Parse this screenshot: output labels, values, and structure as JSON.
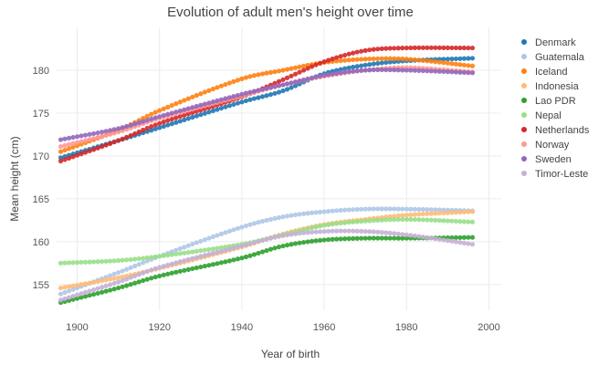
{
  "chart_data": {
    "type": "scatter",
    "title": "Evolution of adult men's height over time",
    "xlabel": "Year of birth",
    "ylabel": "Mean height (cm)",
    "xlim": [
      1895,
      2003
    ],
    "ylim": [
      152,
      185
    ],
    "x_ticks": [
      1900,
      1920,
      1940,
      1960,
      1980,
      2000
    ],
    "y_ticks": [
      155,
      160,
      165,
      170,
      175,
      180
    ],
    "grid": true,
    "legend_position": "right",
    "series": [
      {
        "name": "Denmark",
        "color": "#1f77b4",
        "points": [
          [
            1896,
            169.8
          ],
          [
            1910,
            171.8
          ],
          [
            1920,
            173.3
          ],
          [
            1940,
            176.3
          ],
          [
            1950,
            177.6
          ],
          [
            1960,
            179.6
          ],
          [
            1970,
            180.6
          ],
          [
            1980,
            181.1
          ],
          [
            1996,
            181.4
          ]
        ]
      },
      {
        "name": "Guatemala",
        "color": "#aec7e8",
        "points": [
          [
            1896,
            153.9
          ],
          [
            1910,
            156.4
          ],
          [
            1920,
            158.3
          ],
          [
            1940,
            161.7
          ],
          [
            1950,
            162.9
          ],
          [
            1960,
            163.5
          ],
          [
            1970,
            163.8
          ],
          [
            1980,
            163.8
          ],
          [
            1996,
            163.6
          ]
        ]
      },
      {
        "name": "Iceland",
        "color": "#ff7f0e",
        "points": [
          [
            1896,
            170.5
          ],
          [
            1910,
            173.0
          ],
          [
            1920,
            175.3
          ],
          [
            1940,
            179.0
          ],
          [
            1950,
            180.0
          ],
          [
            1960,
            180.9
          ],
          [
            1970,
            181.3
          ],
          [
            1980,
            181.3
          ],
          [
            1996,
            180.5
          ]
        ]
      },
      {
        "name": "Indonesia",
        "color": "#ffbb78",
        "points": [
          [
            1896,
            154.6
          ],
          [
            1910,
            155.8
          ],
          [
            1920,
            156.9
          ],
          [
            1940,
            159.4
          ],
          [
            1950,
            160.9
          ],
          [
            1960,
            162.0
          ],
          [
            1970,
            162.6
          ],
          [
            1980,
            163.1
          ],
          [
            1996,
            163.5
          ]
        ]
      },
      {
        "name": "Lao PDR",
        "color": "#2ca02c",
        "points": [
          [
            1896,
            152.9
          ],
          [
            1910,
            154.6
          ],
          [
            1920,
            156.0
          ],
          [
            1940,
            158.1
          ],
          [
            1950,
            159.5
          ],
          [
            1960,
            160.2
          ],
          [
            1970,
            160.4
          ],
          [
            1980,
            160.4
          ],
          [
            1996,
            160.5
          ]
        ]
      },
      {
        "name": "Nepal",
        "color": "#98df8a",
        "points": [
          [
            1896,
            157.5
          ],
          [
            1910,
            157.8
          ],
          [
            1920,
            158.3
          ],
          [
            1940,
            159.7
          ],
          [
            1950,
            160.8
          ],
          [
            1960,
            161.9
          ],
          [
            1970,
            162.4
          ],
          [
            1980,
            162.6
          ],
          [
            1996,
            162.3
          ]
        ]
      },
      {
        "name": "Netherlands",
        "color": "#d62728",
        "points": [
          [
            1896,
            169.4
          ],
          [
            1910,
            171.8
          ],
          [
            1920,
            173.8
          ],
          [
            1940,
            176.9
          ],
          [
            1950,
            178.9
          ],
          [
            1960,
            181.0
          ],
          [
            1970,
            182.3
          ],
          [
            1980,
            182.6
          ],
          [
            1996,
            182.6
          ]
        ]
      },
      {
        "name": "Norway",
        "color": "#ff9896",
        "points": [
          [
            1896,
            171.1
          ],
          [
            1910,
            172.8
          ],
          [
            1920,
            174.4
          ],
          [
            1940,
            177.0
          ],
          [
            1950,
            178.3
          ],
          [
            1960,
            179.3
          ],
          [
            1970,
            180.0
          ],
          [
            1980,
            180.3
          ],
          [
            1996,
            179.8
          ]
        ]
      },
      {
        "name": "Sweden",
        "color": "#9467bd",
        "points": [
          [
            1896,
            171.9
          ],
          [
            1910,
            173.2
          ],
          [
            1920,
            174.6
          ],
          [
            1940,
            177.2
          ],
          [
            1950,
            178.3
          ],
          [
            1960,
            179.4
          ],
          [
            1970,
            180.0
          ],
          [
            1980,
            180.0
          ],
          [
            1996,
            179.7
          ]
        ]
      },
      {
        "name": "Timor-Leste",
        "color": "#c5b0d5",
        "points": [
          [
            1896,
            153.2
          ],
          [
            1910,
            155.3
          ],
          [
            1920,
            157.0
          ],
          [
            1940,
            159.5
          ],
          [
            1950,
            160.7
          ],
          [
            1960,
            161.2
          ],
          [
            1970,
            161.2
          ],
          [
            1980,
            160.8
          ],
          [
            1996,
            159.7
          ]
        ]
      }
    ]
  }
}
